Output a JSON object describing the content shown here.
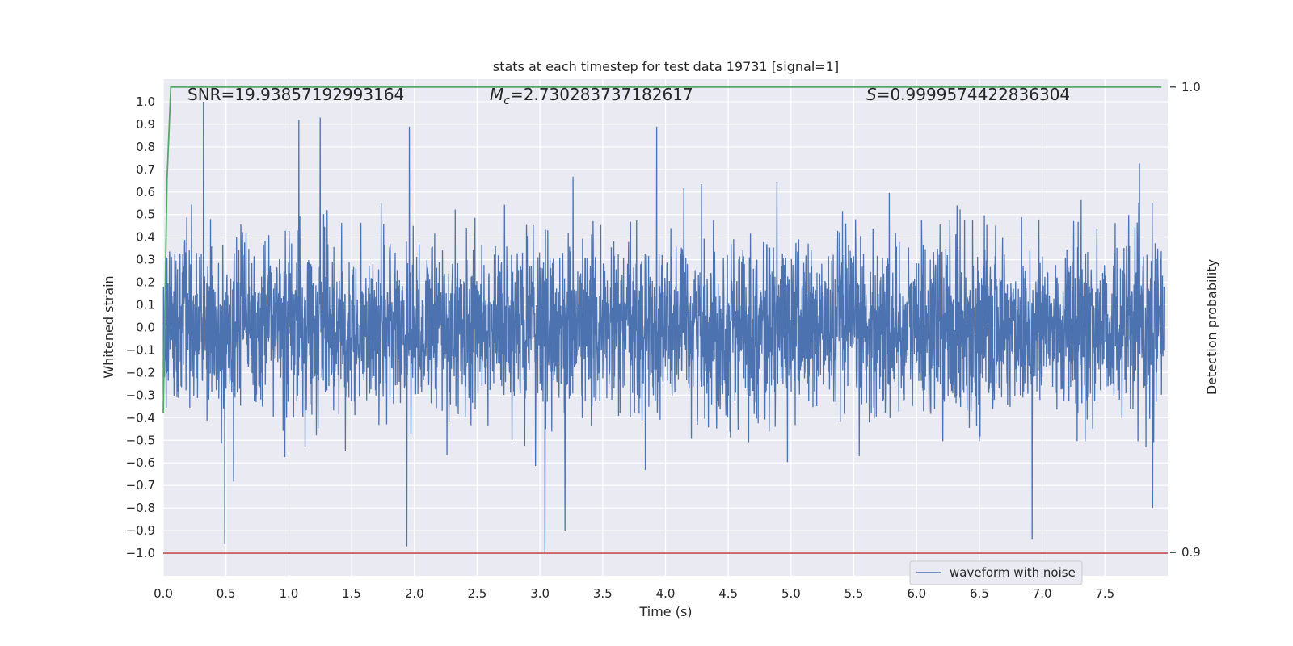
{
  "chart_data": {
    "type": "line",
    "title": "stats at each timestep for test data 19731 [signal=1]",
    "xlabel": "Time (s)",
    "ylabel": "Whitened strain",
    "y2label": "Detection probability",
    "xlim": [
      0.0,
      8.0
    ],
    "ylim": [
      -1.1,
      1.1
    ],
    "y2lim": [
      0.895,
      1.0017
    ],
    "xticks": [
      "0.0",
      "0.5",
      "1.0",
      "1.5",
      "2.0",
      "2.5",
      "3.0",
      "3.5",
      "4.0",
      "4.5",
      "5.0",
      "5.5",
      "6.0",
      "6.5",
      "7.0",
      "7.5"
    ],
    "yticks": [
      "1.0",
      "0.9",
      "0.8",
      "0.7",
      "0.6",
      "0.5",
      "0.4",
      "0.3",
      "0.2",
      "0.1",
      "0.0",
      "−0.1",
      "−0.2",
      "−0.3",
      "−0.4",
      "−0.5",
      "−0.6",
      "−0.7",
      "−0.8",
      "−0.9",
      "−1.0"
    ],
    "y2ticks": [
      "1.0",
      "0.9"
    ],
    "grid": true,
    "legend_position": "lower-right",
    "annotations": {
      "snr": "SNR=19.93857192993164",
      "mc_symbol": "M",
      "mc_subscript": "c",
      "mc_value": "=2.730283737182617",
      "s_symbol": "S",
      "s_value": "=0.9999574422836304"
    },
    "series": [
      {
        "name": "waveform with noise",
        "color": "#4c72b0",
        "axis": "left",
        "description_values": "dense noise-like strain, amplitude mostly within ±0.5, peaks near ±1.0",
        "peaks": [
          {
            "x": 0.32,
            "y": 1.0
          },
          {
            "x": 1.08,
            "y": 0.92
          },
          {
            "x": 1.25,
            "y": 0.93
          },
          {
            "x": 1.96,
            "y": 0.89
          },
          {
            "x": 3.93,
            "y": 0.89
          },
          {
            "x": 0.49,
            "y": -0.96
          },
          {
            "x": 1.94,
            "y": -0.97
          },
          {
            "x": 3.04,
            "y": -1.0
          },
          {
            "x": 3.2,
            "y": -0.9
          },
          {
            "x": 6.92,
            "y": -0.94
          },
          {
            "x": 7.88,
            "y": -0.8
          }
        ]
      },
      {
        "name": "",
        "color": "#55a868",
        "axis": "right",
        "x": [
          0.0,
          0.03,
          0.06,
          0.1,
          7.95
        ],
        "values": [
          0.93,
          0.98,
          1.0,
          1.0,
          1.0
        ]
      },
      {
        "name": "",
        "color": "#c44e52",
        "axis": "left",
        "x": [
          0.0,
          8.0
        ],
        "values": [
          -1.0,
          -1.0
        ]
      }
    ]
  }
}
